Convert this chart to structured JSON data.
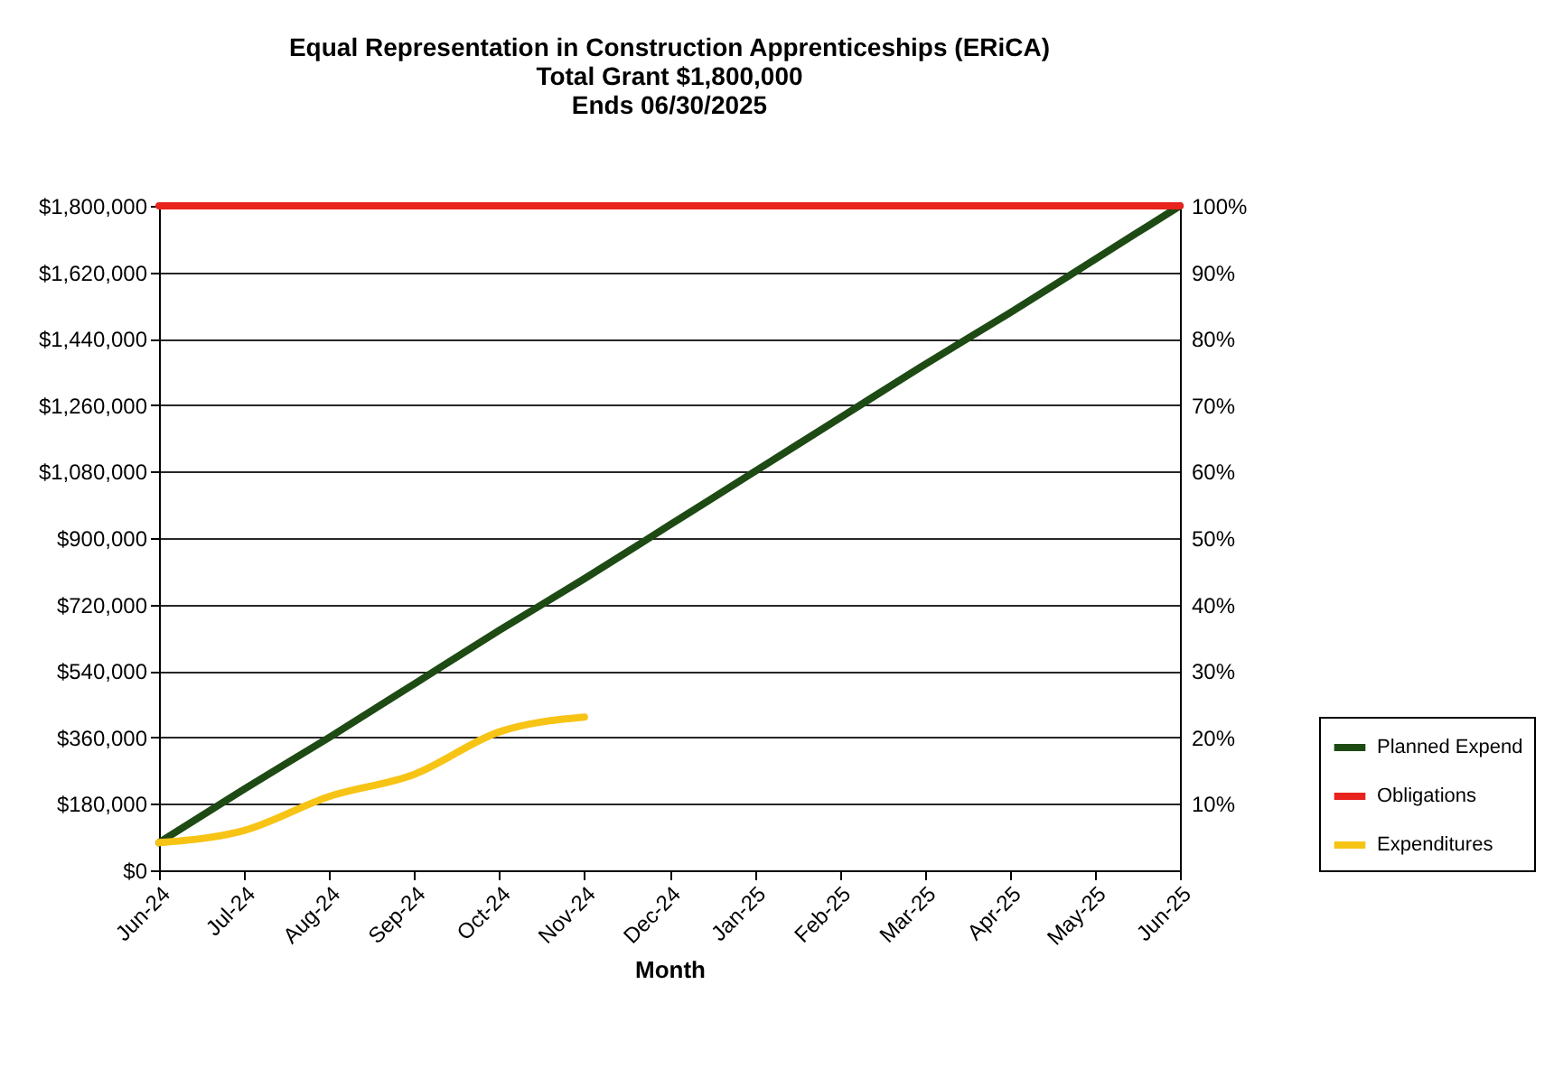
{
  "chart_data": {
    "type": "line",
    "title": "Equal Representation in Construction Apprenticeships (ERiCA)",
    "subtitle": "Total Grant  $1,800,000\nEnds 06/30/2025",
    "xlabel": "Month",
    "categories": [
      "Jun-24",
      "Jul-24",
      "Aug-24",
      "Sep-24",
      "Oct-24",
      "Nov-24",
      "Dec-24",
      "Jan-25",
      "Feb-25",
      "Mar-25",
      "Apr-25",
      "May-25",
      "Jun-25"
    ],
    "series": [
      {
        "name": "Planned Expend",
        "color": "#1e4a14",
        "values": [
          75000,
          220000,
          360000,
          505000,
          650000,
          790000,
          935000,
          1080000,
          1225000,
          1370000,
          1510000,
          1655000,
          1800000
        ]
      },
      {
        "name": "Obligations",
        "color": "#e8221c",
        "values": [
          1800000,
          1800000,
          1800000,
          1800000,
          1800000,
          1800000,
          1800000,
          1800000,
          1800000,
          1800000,
          1800000,
          1800000,
          1800000
        ]
      },
      {
        "name": "Expenditures",
        "color": "#f7c416",
        "values": [
          75000,
          108000,
          200000,
          260000,
          375000,
          415000,
          null,
          null,
          null,
          null,
          null,
          null,
          null
        ]
      }
    ],
    "ylim": [
      0,
      1800000
    ],
    "yticks": [
      {
        "value": 0,
        "label": "$0"
      },
      {
        "value": 180000,
        "label": "$180,000"
      },
      {
        "value": 360000,
        "label": "$360,000"
      },
      {
        "value": 540000,
        "label": "$540,000"
      },
      {
        "value": 720000,
        "label": "$720,000"
      },
      {
        "value": 900000,
        "label": "$900,000"
      },
      {
        "value": 1080000,
        "label": "$1,080,000"
      },
      {
        "value": 1260000,
        "label": "$1,260,000"
      },
      {
        "value": 1440000,
        "label": "$1,440,000"
      },
      {
        "value": 1620000,
        "label": "$1,620,000"
      },
      {
        "value": 1800000,
        "label": "$1,800,000"
      }
    ],
    "y2lim": [
      0,
      100
    ],
    "y2ticks": [
      {
        "value": 10,
        "label": "10%"
      },
      {
        "value": 20,
        "label": "20%"
      },
      {
        "value": 30,
        "label": "30%"
      },
      {
        "value": 40,
        "label": "40%"
      },
      {
        "value": 50,
        "label": "50%"
      },
      {
        "value": 60,
        "label": "60%"
      },
      {
        "value": 70,
        "label": "70%"
      },
      {
        "value": 80,
        "label": "80%"
      },
      {
        "value": 90,
        "label": "90%"
      },
      {
        "value": 100,
        "label": "100%"
      }
    ],
    "grid": "y",
    "legend": "bottom right",
    "marker": "none",
    "line_style": "solid"
  }
}
